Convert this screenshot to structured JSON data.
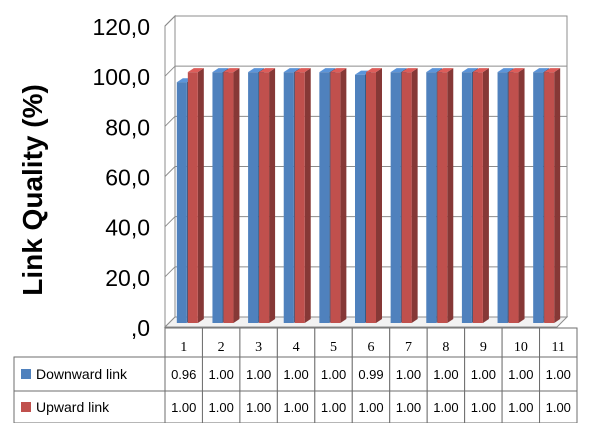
{
  "chart_data": {
    "type": "bar",
    "title": "",
    "xlabel": "",
    "ylabel": "Link Quality (%)",
    "ylim": [
      0,
      120
    ],
    "yticks": [
      ",0",
      "20,0",
      "40,0",
      "60,0",
      "80,0",
      "100,0",
      "120,0"
    ],
    "categories": [
      "1",
      "2",
      "3",
      "4",
      "5",
      "6",
      "7",
      "8",
      "9",
      "10",
      "11"
    ],
    "grid": "horizontal",
    "legend": "data-table",
    "series": [
      {
        "name": "Downward link",
        "color": "#4f81bd",
        "values": [
          96,
          100,
          100,
          100,
          100,
          99,
          100,
          100,
          100,
          100,
          100
        ],
        "table_values": [
          "0.96",
          "1.00",
          "1.00",
          "1.00",
          "1.00",
          "0.99",
          "1.00",
          "1.00",
          "1.00",
          "1.00",
          "1.00"
        ]
      },
      {
        "name": "Upward link",
        "color": "#c0504d",
        "values": [
          100,
          100,
          100,
          100,
          100,
          100,
          100,
          100,
          100,
          100,
          100
        ],
        "table_values": [
          "1.00",
          "1.00",
          "1.00",
          "1.00",
          "1.00",
          "1.00",
          "1.00",
          "1.00",
          "1.00",
          "1.00",
          "1.00"
        ]
      }
    ]
  }
}
